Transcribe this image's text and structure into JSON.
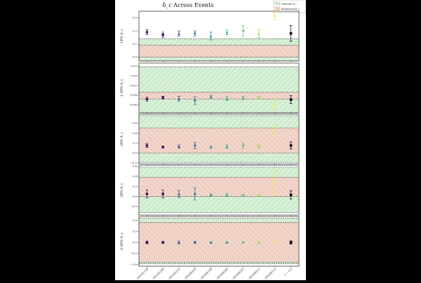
{
  "title": "δ_c Across Events",
  "legend": {
    "placement": "top-right",
    "entries": [
      {
        "label": "General δ_c",
        "color": "#2ca02c"
      },
      {
        "label": "Restricted δ_c",
        "color": "#d62728"
      }
    ]
  },
  "events": [
    "GW191129",
    "GW191204",
    "GW191216",
    "GW200316",
    "GW200129",
    "GW200202",
    "GW200225",
    "GW200311",
    "GW200115",
    "1 − 0.2"
  ],
  "colors": [
    "#440154",
    "#3b1f74",
    "#2f4a8a",
    "#22688e",
    "#1e8a8a",
    "#26a884",
    "#4dc36b",
    "#90d743",
    "#f3e84a",
    "#000000"
  ],
  "chart_data": [
    {
      "type": "scatter",
      "ylabel": "1PN δ_c",
      "ylim": [
        -0.03,
        0.35
      ],
      "ticks": [
        0.0,
        0.1,
        0.2,
        0.3
      ],
      "tick_labels": [
        "0.0",
        "0.1",
        "0.2",
        "0.3"
      ],
      "general_band": [
        -0.03,
        0.14
      ],
      "restricted_band": [
        0.0,
        0.09
      ],
      "values": [
        0.19,
        0.17,
        0.18,
        0.18,
        0.16,
        0.19,
        0.2,
        0.18,
        0.32,
        0.18
      ],
      "errors": [
        0.02,
        0.02,
        0.02,
        0.02,
        0.03,
        0.02,
        0.04,
        0.03,
        0.04,
        0.06
      ]
    },
    {
      "type": "scatter",
      "ylabel": "1.5PN δ_c",
      "ylim": [
        -0.076,
        0.026
      ],
      "ticks": [
        0.02,
        0.0,
        -0.02,
        -0.04,
        -0.06
      ],
      "tick_labels": [
        "0.02",
        "0.00",
        "−0.02",
        "−0.04",
        "−0.06"
      ],
      "general_band": [
        -0.076,
        0.018
      ],
      "restricted_band": [
        -0.048,
        -0.034
      ],
      "values": [
        -0.048,
        -0.045,
        -0.047,
        -0.051,
        -0.043,
        -0.047,
        -0.046,
        -0.045,
        -0.058,
        -0.049
      ],
      "errors": [
        0.004,
        0.003,
        0.005,
        0.008,
        0.003,
        0.004,
        0.004,
        0.003,
        0.012,
        0.008
      ]
    },
    {
      "type": "scatter",
      "ylabel": "2PN δ_c",
      "ylim": [
        -0.22,
        0.78
      ],
      "ticks": [
        0.6,
        0.4,
        0.2,
        0.0,
        -0.2
      ],
      "tick_labels": [
        "0.6",
        "0.4",
        "0.2",
        "0.0",
        "−0.2"
      ],
      "general_band": [
        -0.19,
        0.75
      ],
      "restricted_band": [
        0.0,
        0.5
      ],
      "values": [
        0.15,
        0.12,
        0.13,
        0.15,
        0.12,
        0.13,
        0.15,
        0.13,
        0.45,
        0.15
      ],
      "errors": [
        0.04,
        0.02,
        0.03,
        0.06,
        0.02,
        0.03,
        0.06,
        0.03,
        0.1,
        0.07
      ]
    },
    {
      "type": "scatter",
      "ylabel": "3PN δ_c",
      "ylim": [
        -0.37,
        0.62
      ],
      "ticks": [
        0.6,
        0.4,
        0.2,
        0.0,
        -0.2
      ],
      "tick_labels": [
        "0.6",
        "0.4",
        "0.2",
        "0.0",
        "−0.2"
      ],
      "general_band": [
        -0.32,
        0.58
      ],
      "restricted_band": [
        0.0,
        0.38
      ],
      "values": [
        0.05,
        0.05,
        0.05,
        0.05,
        0.03,
        0.03,
        0.02,
        0.02,
        0.28,
        0.03
      ],
      "errors": [
        0.08,
        0.08,
        0.07,
        0.12,
        0.02,
        0.03,
        0.02,
        0.02,
        0.24,
        0.08
      ]
    },
    {
      "type": "scatter",
      "ylabel": "3.5PN δ_c",
      "ylim": [
        -1.08,
        1.18
      ],
      "ticks": [
        1.0,
        0.5,
        0.0,
        -0.5,
        -1.0
      ],
      "tick_labels": [
        "1.0",
        "0.5",
        "0.0",
        "−0.5",
        "−1.0"
      ],
      "general_band": [
        -0.97,
        1.1
      ],
      "restricted_band": [
        -0.9,
        0.9
      ],
      "values": [
        0.0,
        0.0,
        0.0,
        0.0,
        0.0,
        0.0,
        0.0,
        0.0,
        0.0,
        0.0
      ],
      "errors": [
        0.06,
        0.05,
        0.06,
        0.05,
        0.03,
        0.03,
        0.03,
        0.03,
        0.04,
        0.07
      ]
    }
  ]
}
